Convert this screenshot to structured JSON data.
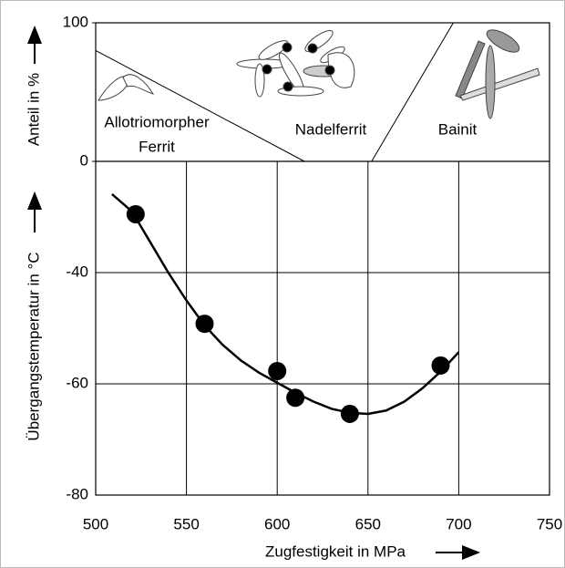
{
  "chart_data": [
    {
      "type": "boundary",
      "ylabel": "Anteil in %",
      "ylim": [
        0,
        100
      ],
      "yticks": [
        0,
        100
      ],
      "series": [
        {
          "color": "#000000",
          "x": [
            500,
            615
          ],
          "values": [
            80,
            0
          ]
        },
        {
          "color": "#000000",
          "x": [
            652,
            697
          ],
          "values": [
            0,
            100
          ]
        }
      ],
      "annotations": [
        "Allotriomorpher",
        "Ferrit",
        "Nadelferrit",
        "Bainit"
      ]
    },
    {
      "type": "scatter-line",
      "xlabel": "Zugfestigkeit in MPa",
      "ylabel": "Übergangstemperatur in °C",
      "xlim": [
        500,
        750
      ],
      "xticks": [
        500,
        550,
        600,
        650,
        700,
        750
      ],
      "ylim": [
        -80,
        -20
      ],
      "yticks": [
        -40,
        -60,
        -80
      ],
      "grid": true,
      "series": [
        {
          "color": "#000000",
          "x": [
            522,
            560,
            600,
            610,
            640,
            690
          ],
          "values": [
            -29.5,
            -49.2,
            -57.7,
            -62.5,
            -65.4,
            -56.7
          ]
        },
        {
          "color": "#000000",
          "x": [
            509,
            520,
            530,
            540,
            550,
            560,
            570,
            580,
            590,
            600,
            610,
            620,
            630,
            640,
            650,
            660,
            670,
            680,
            690,
            700
          ],
          "values": [
            -25.9,
            -29,
            -34.5,
            -40,
            -45,
            -49.5,
            -53,
            -55.8,
            -58,
            -59.8,
            -61.6,
            -63.2,
            -64.5,
            -65.2,
            -65.4,
            -64.8,
            -63.2,
            -60.8,
            -57.8,
            -54.3
          ]
        }
      ]
    }
  ]
}
